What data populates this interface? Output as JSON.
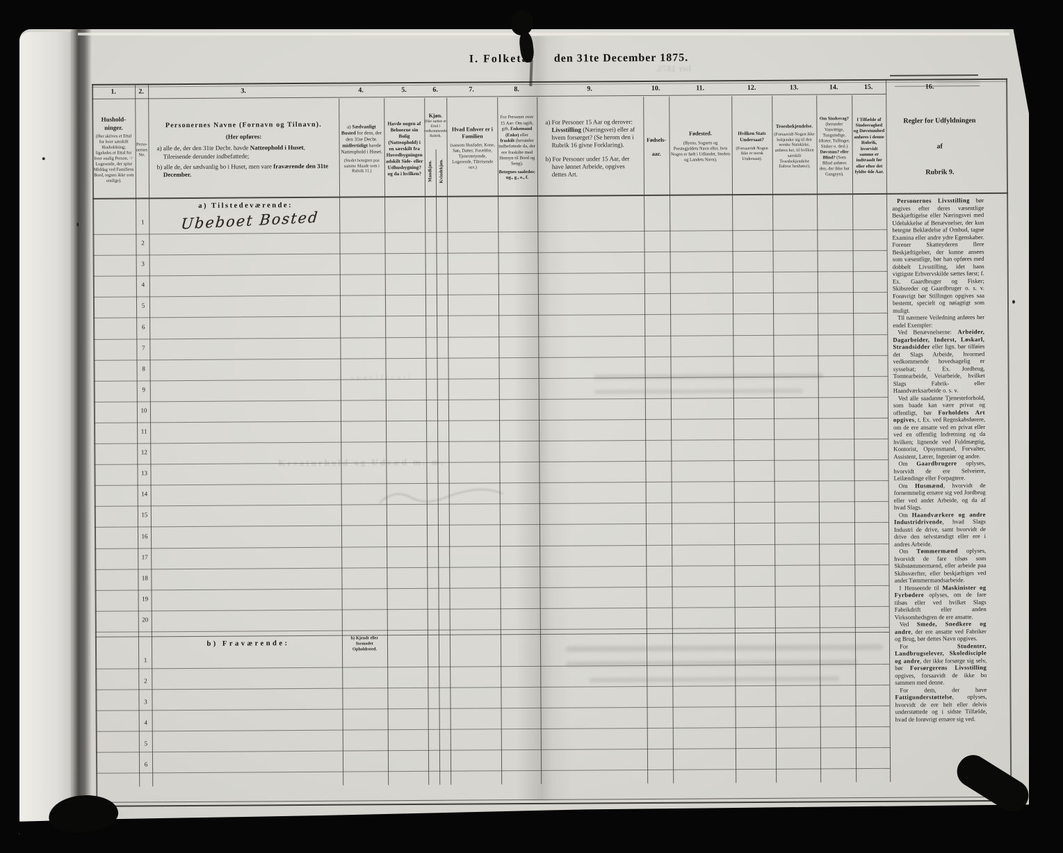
{
  "page_title": {
    "part1": "I. Folketal",
    "part2": "den 31te December 1875."
  },
  "table": {
    "column_numbers": [
      "1.",
      "2.",
      "3.",
      "4.",
      "5.",
      "6.",
      "7.",
      "8.",
      "9.",
      "10.",
      "11.",
      "12.",
      "13.",
      "14.",
      "15.",
      "16."
    ],
    "headers": {
      "col1": {
        "title": "Hushold­ninger.",
        "note": "(Her skrives et Ettal for hver særskilt Husholdning; ligeledes et Ettal for hver enslig Person. ☞ Logerende, der spise Middag ved Familiens Bord, regnes ikke som enslige)."
      },
      "col2": {
        "title": "Per­so­ner­nes No."
      },
      "col3": {
        "title": "Personernes Navne (Fornavn og Tilnavn).",
        "subtitle": "(Her opføres:",
        "item_a": "a) alle de, der den 31te Decbr. havde **Natteophold i Huset**, Tilreisende derunder indbefattede;",
        "item_b": "b) alle de, der sædvanlig bo i Huset, men vare **fraværende den 31te December.**"
      },
      "col4": {
        "text": "a) **Sædvanligt Bosted** for dem, der den 31te Decbr. **midlertidigt** havde Natteophold i Huset.",
        "note": "(Stedet betegnes paa samme Maade som i Rubrik 11.)"
      },
      "col5": {
        "text": "Havde nogen af Beboerne sin Bolig (Natteophold) i en særskilt fra Hovedbygningen adskilt Side- eller Udhusbygning? og da i hvilken?"
      },
      "col6": {
        "title": "Kjøn.",
        "note": "(Her sættes et Ettal i vedkommende Rubrik.",
        "sub_male": "Mandkjøn.",
        "sub_female": "Kvindekjøn."
      },
      "col7": {
        "title": "Hvad Enhver er i Familien",
        "note": "(saasom Husfader, Kone, Søn, Datter, Forældre, Tjenestetyende, Logerende, Tilreisende osv.)"
      },
      "col8": {
        "text": "For Personer over 15 Aar: Om ugift, gift, **Enkemand (Enke)** eller **fraskilt** (herunder indbefattede da, der ere fraskilte med Hensyn til Bord og Seng).",
        "note": "Betegnes saaledes: ug., g., e., f."
      },
      "col9": {
        "item_a": "a) For Personer 15 Aar og derover: **Livsstilling** (Næringsvei) eller af hvem forsørget? (Se herom den i Rubrik 16 givne Forklaring).",
        "item_b": "b) For Personer under 15 Aar, der have lønnet Arbeide, opgives dettes Art."
      },
      "col10": {
        "title": "Fødsels­aar."
      },
      "col11": {
        "title": "Fødested.",
        "note": "(Byens, Sognets og Prestegjeldets Navn eller, hvis Nogen er født i Udlandet, Stedets og Landets Navn)."
      },
      "col12": {
        "title": "Hvilken Stats Undersaat?",
        "note": "(Forsaavidt Nogen ikke er norsk Undersaat)."
      },
      "col13": {
        "title": "Troesbekjendelse.",
        "note": "(Forsaavidt Nogen ikke bekjender sig til den norske Statskirke, anføres her, til hvilken særskilt Troesbekjendelse Enhver henhører)."
      },
      "col14": {
        "text": "**Om Sindssvag?** (herunder Vanvittige, Tungsindige, Idioter, Tullinger, Sinker o. desl.) **Døvstum? eller Blind?** (Som Blind anføres den, der ikke har Gangsyn)."
      },
      "col15": {
        "text": "I Tilfælde af Sindssvaghed og Døvstumhed anføres i denne Rubrik, hvorvidt samme er indtraadt før eller efter det fyldte 4de Aar."
      },
      "col16": {
        "line1": "Regler for Udfyldningen",
        "line2": "af",
        "line3": "Rubrik 9."
      }
    },
    "section_a": {
      "label": "a) Tilstedeværende:",
      "row_numbers": [
        "1",
        "2",
        "3",
        "4",
        "5",
        "6",
        "7",
        "8",
        "9",
        "10",
        "11",
        "12",
        "13",
        "14",
        "15",
        "16",
        "17",
        "18",
        "19",
        "20"
      ],
      "row1_entry": "Ubeboet Bosted"
    },
    "section_b": {
      "label": "b) Fraværende:",
      "col4_note": "b) Kjendt eller formodet Opholdssted.",
      "row_numbers": [
        "1",
        "2",
        "3",
        "4",
        "5",
        "6"
      ]
    }
  },
  "rules": {
    "paragraphs": [
      "**Personernes Livsstilling** bør angives efter deres væsentlige Beskjæftigelse eller Næringsvei med Udelukkelse af Benævnelser, der kun betegne Beklædelse af Ombud, tagne Examina eller andre ydre Egenskaber. Forener Skatteyderen flere Beskjæftigelser, der kunne ansees som væsentlige, bør han opføres med dobbelt Livsstilling, idet hans vigtigste Erhvervskilde sættes først; f. Ex. Gaardbruger og Fisker; Skibsreder og Gaardbruger o. s. v. Forøvrigt bør Stillingen opgives saa bestemt, specielt og nøiagtigt som muligt.",
      "Til nærmere Veiledning anføres her endel Exempler:",
      "Ved Benævnelserne: **Arbeider, Dagarbeider, Inderst, Løskarl, Strandsidder** eller lign. bør tilføies det Slags Arbeide, hvormed vedkommende hovedsagelig er sysselsat; f. Ex. Jordbrug, Tomtearbeide, Veiarbeide, hvilket Slags Fabrik- eller Haandværksarbeide o. s. v.",
      "Ved alle saadanne Tjenesteforhold, som baade kan være privat og offentligt, bør **Forholdets Art opgives**, t. Ex. ved Regnskabsførere, om de ere ansatte ved en privat eller ved en offentlig Indretning og da hvilken; lignende ved Fuldmægtig, Kontorist, Opsynsmand, Forvalter, Assistent, Lærer, Ingeniør og andre.",
      "Om **Gaardbrugere** oplyses, hvorvidt de ere Selveiere, Leilændinge eller Forpagtere.",
      "Om **Husmænd**, hvorvidt de fornemmelig ernære sig ved Jordbrug eller ved andet Arbeide, og da af hvad Slags.",
      "Om **Haandværkere og andre Industridrivende**, hvad Slags Industri de drive, samt hvorvidt de drive den selvstændigt eller ere i andres Arbeide.",
      "Om **Tømmermænd** oplyses, hvorvidt de fare tilsøs som Skibstømmermænd, eller arbeide paa Skibsværfter, eller beskjæftiges ved andet Tømmermandsarbeide.",
      "I Henseende til **Maskinister og Fyrbødere** oplyses, om de fare tilsøs eller ved hvilket Slags Fabrikdrift eller anden Virksomhedsgren de ere ansatte.",
      "Ved **Smede, Snedkere og andre**, der ere ansatte ved Fabriker og Brug, bør dettes Navn opgives.",
      "For **Studenter, Landbrugselever, Skoledisciple og andre**, der ikke forsørge sig selv, bør **Forsørgerens Livsstilling** opgives, forsaavidt de ikke bo sammen med denne.",
      "For dem, der have **Fattigunderstøttelse**, oplyses, hvorvidt de ere helt eller delvis understøttede og i sidste Tilfælde, hvad de forøvrigt ernære sig ved."
    ]
  },
  "ghosts": {
    "top_right": "ber 1875.",
    "mid_large": "Kreaturhold og Udsæd m. m.",
    "mid_small": "specificati"
  }
}
